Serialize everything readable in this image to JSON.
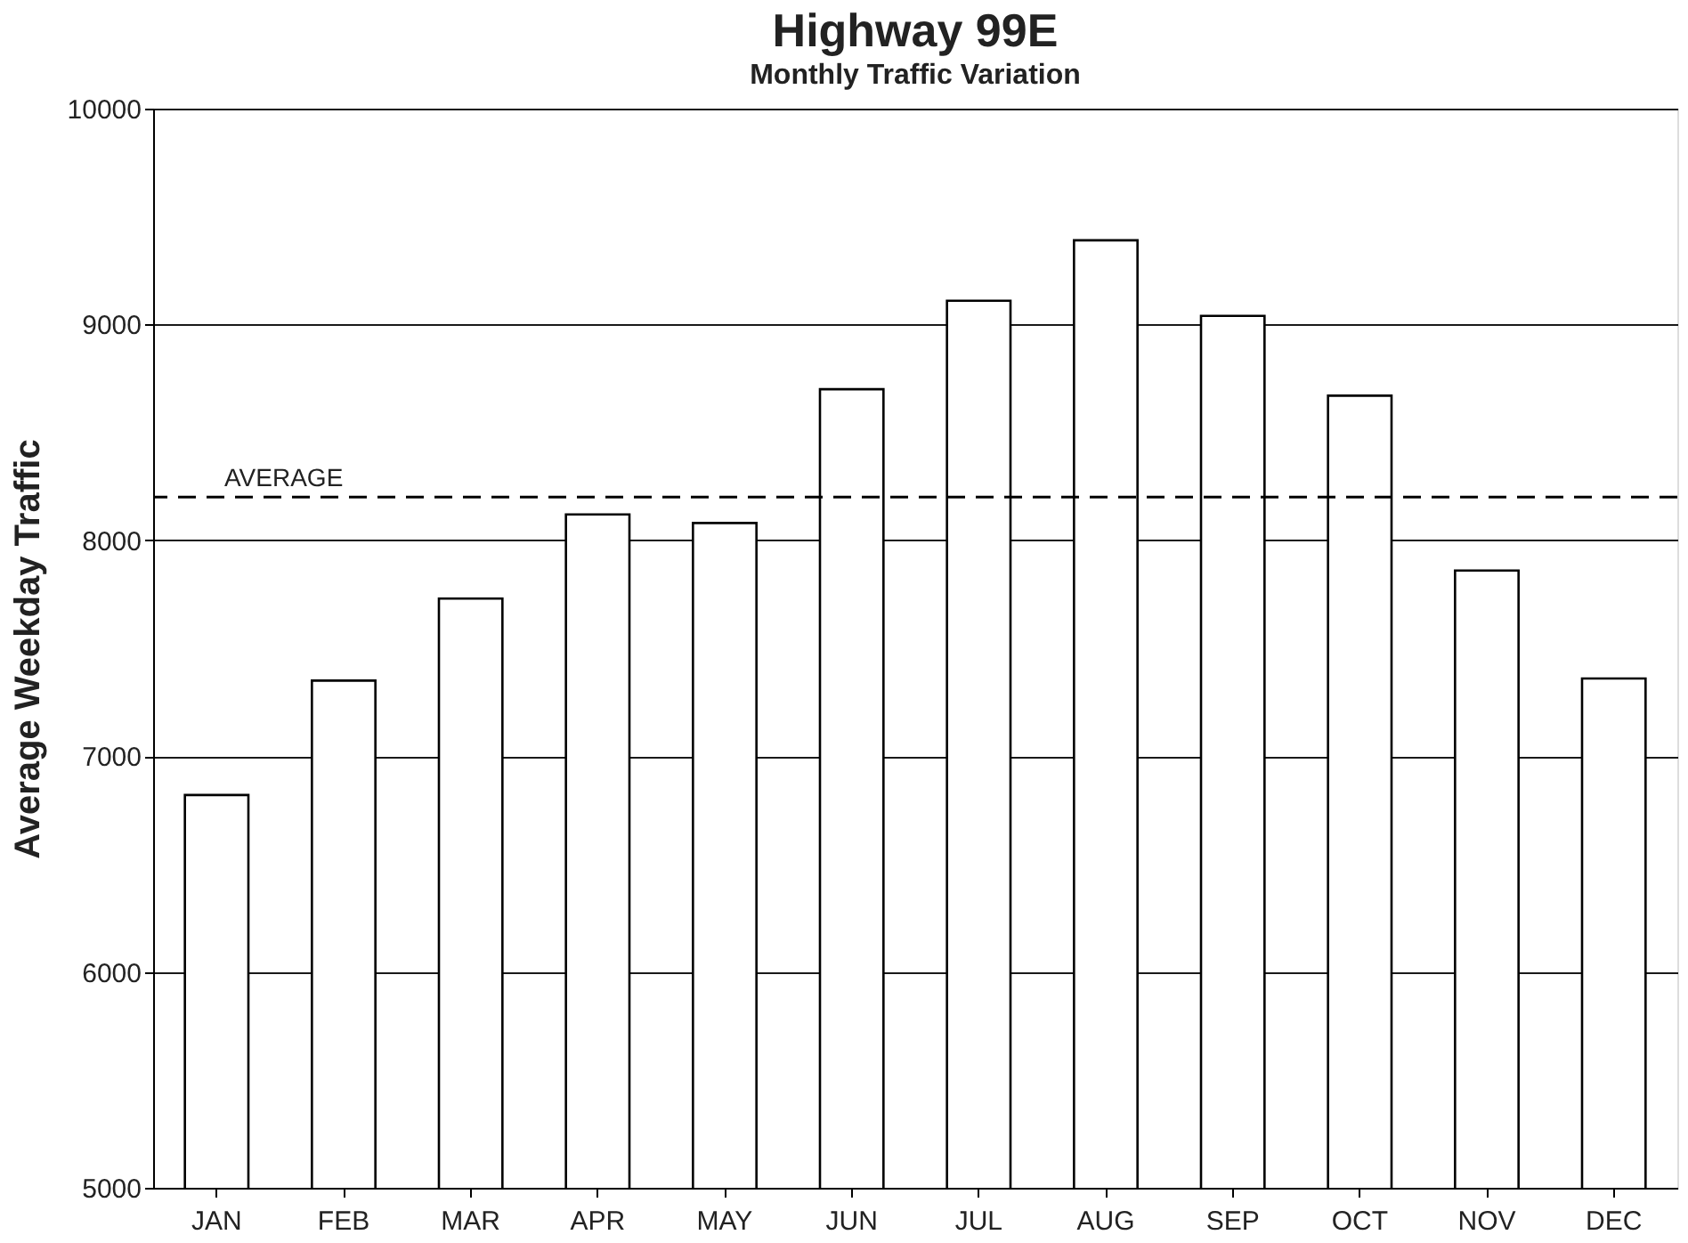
{
  "chart_data": {
    "type": "bar",
    "title": "Highway 99E",
    "subtitle": "Monthly Traffic Variation",
    "ylabel": "Average Weekday Traffic",
    "categories": [
      "JAN",
      "FEB",
      "MAR",
      "APR",
      "MAY",
      "JUN",
      "JUL",
      "AUG",
      "SEP",
      "OCT",
      "NOV",
      "DEC"
    ],
    "values": [
      6820,
      7350,
      7730,
      8120,
      8080,
      8700,
      9110,
      9390,
      9040,
      8670,
      7860,
      7360
    ],
    "color": "#ffffff",
    "ylim": [
      5000,
      10000
    ],
    "yticks": [
      5000,
      6000,
      7000,
      8000,
      9000,
      10000
    ],
    "grid": "y",
    "ref_lines": [
      {
        "axis": "y",
        "value": 8200,
        "label": "AVERAGE",
        "line_style": "dashed"
      }
    ]
  }
}
